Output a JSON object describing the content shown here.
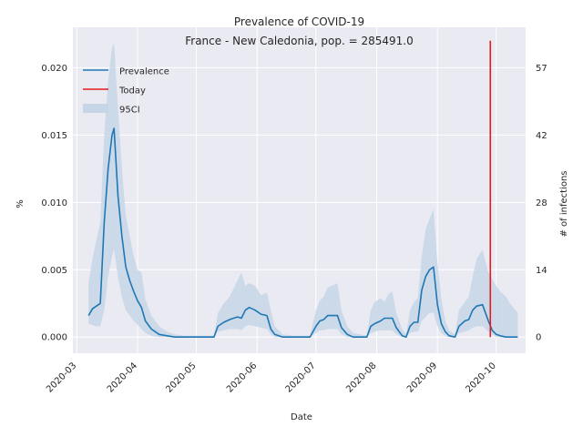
{
  "chart_data": {
    "type": "line",
    "title": "Prevalence of COVID-19",
    "subtitle": "France - New Caledonia, pop. = 285491.0",
    "xlabel": "Date",
    "ylabel": "%",
    "ylabel_right": "# of infections",
    "grid": true,
    "legend_position": "top-left",
    "xlim": [
      "2020-02-28",
      "2020-10-16"
    ],
    "ylim": [
      -0.0012,
      0.023
    ],
    "x_ticks": [
      "2020-03",
      "2020-04",
      "2020-05",
      "2020-06",
      "2020-07",
      "2020-08",
      "2020-09",
      "2020-10"
    ],
    "y_ticks": [
      "0.000",
      "0.005",
      "0.010",
      "0.015",
      "0.020"
    ],
    "y_ticks_right": [
      "0",
      "14",
      "28",
      "42",
      "57"
    ],
    "legend": [
      {
        "label": "Prevalence",
        "color": "#1f77b4"
      },
      {
        "label": "Today",
        "color": "#e41a1c"
      },
      {
        "label": "95CI",
        "color": "#c6d6e6"
      }
    ],
    "today": {
      "date": "2020-09-28",
      "y_top": 0.022
    },
    "series": [
      {
        "name": "Prevalence",
        "color": "#1f77b4",
        "x": [
          "2020-03-07",
          "2020-03-09",
          "2020-03-11",
          "2020-03-13",
          "2020-03-15",
          "2020-03-17",
          "2020-03-19",
          "2020-03-20",
          "2020-03-22",
          "2020-03-24",
          "2020-03-26",
          "2020-03-28",
          "2020-03-30",
          "2020-04-01",
          "2020-04-03",
          "2020-04-05",
          "2020-04-08",
          "2020-04-12",
          "2020-04-16",
          "2020-04-20",
          "2020-04-25",
          "2020-05-10",
          "2020-05-12",
          "2020-05-15",
          "2020-05-18",
          "2020-05-20",
          "2020-05-22",
          "2020-05-24",
          "2020-05-26",
          "2020-05-28",
          "2020-05-31",
          "2020-06-03",
          "2020-06-06",
          "2020-06-08",
          "2020-06-10",
          "2020-06-14",
          "2020-06-20",
          "2020-06-28",
          "2020-07-01",
          "2020-07-03",
          "2020-07-05",
          "2020-07-07",
          "2020-07-09",
          "2020-07-12",
          "2020-07-14",
          "2020-07-17",
          "2020-07-20",
          "2020-07-27",
          "2020-07-29",
          "2020-07-31",
          "2020-08-03",
          "2020-08-05",
          "2020-08-07",
          "2020-08-09",
          "2020-08-11",
          "2020-08-14",
          "2020-08-16",
          "2020-08-18",
          "2020-08-20",
          "2020-08-22",
          "2020-08-24",
          "2020-08-26",
          "2020-08-28",
          "2020-08-30",
          "2020-09-01",
          "2020-09-03",
          "2020-09-05",
          "2020-09-07",
          "2020-09-10",
          "2020-09-12",
          "2020-09-15",
          "2020-09-17",
          "2020-09-19",
          "2020-09-21",
          "2020-09-24",
          "2020-09-27",
          "2020-09-29",
          "2020-10-01",
          "2020-10-03",
          "2020-10-06",
          "2020-10-08",
          "2020-10-12"
        ],
        "values": [
          0.0016,
          0.0021,
          0.0023,
          0.0025,
          0.0085,
          0.0125,
          0.015,
          0.0155,
          0.0105,
          0.0075,
          0.0052,
          0.0042,
          0.0034,
          0.0027,
          0.0022,
          0.0012,
          0.0006,
          0.0002,
          0.0001,
          0.0,
          0.0,
          0.0,
          0.0008,
          0.0011,
          0.0013,
          0.0014,
          0.0015,
          0.0014,
          0.002,
          0.0022,
          0.002,
          0.0017,
          0.0016,
          0.0006,
          0.0002,
          0.0,
          0.0,
          0.0,
          0.0008,
          0.0012,
          0.0013,
          0.0016,
          0.0016,
          0.0016,
          0.0007,
          0.0002,
          0.0,
          0.0,
          0.0008,
          0.001,
          0.0012,
          0.0014,
          0.0014,
          0.0014,
          0.0007,
          0.0001,
          0.0,
          0.0008,
          0.0011,
          0.0011,
          0.0035,
          0.0045,
          0.005,
          0.0052,
          0.0024,
          0.001,
          0.0004,
          0.0001,
          0.0,
          0.0008,
          0.0012,
          0.0013,
          0.002,
          0.0023,
          0.0024,
          0.0012,
          0.0005,
          0.0002,
          0.0001,
          0.0,
          0.0,
          0.0
        ]
      }
    ],
    "ci_band": {
      "name": "95CI",
      "color": "#c6d6e6",
      "x": [
        "2020-03-07",
        "2020-03-09",
        "2020-03-11",
        "2020-03-13",
        "2020-03-15",
        "2020-03-17",
        "2020-03-19",
        "2020-03-20",
        "2020-03-22",
        "2020-03-24",
        "2020-03-26",
        "2020-03-28",
        "2020-03-30",
        "2020-04-01",
        "2020-04-03",
        "2020-04-05",
        "2020-04-08",
        "2020-04-12",
        "2020-04-16",
        "2020-04-20",
        "2020-04-25",
        "2020-05-10",
        "2020-05-12",
        "2020-05-15",
        "2020-05-18",
        "2020-05-20",
        "2020-05-22",
        "2020-05-24",
        "2020-05-26",
        "2020-05-28",
        "2020-05-31",
        "2020-06-03",
        "2020-06-06",
        "2020-06-08",
        "2020-06-10",
        "2020-06-14",
        "2020-06-20",
        "2020-06-28",
        "2020-07-01",
        "2020-07-03",
        "2020-07-05",
        "2020-07-07",
        "2020-07-09",
        "2020-07-12",
        "2020-07-14",
        "2020-07-17",
        "2020-07-20",
        "2020-07-27",
        "2020-07-29",
        "2020-07-31",
        "2020-08-03",
        "2020-08-05",
        "2020-08-07",
        "2020-08-09",
        "2020-08-11",
        "2020-08-14",
        "2020-08-16",
        "2020-08-18",
        "2020-08-20",
        "2020-08-22",
        "2020-08-24",
        "2020-08-26",
        "2020-08-28",
        "2020-08-30",
        "2020-09-01",
        "2020-09-03",
        "2020-09-05",
        "2020-09-07",
        "2020-09-10",
        "2020-09-12",
        "2020-09-15",
        "2020-09-17",
        "2020-09-19",
        "2020-09-21",
        "2020-09-24",
        "2020-09-27",
        "2020-09-29",
        "2020-10-01",
        "2020-10-03",
        "2020-10-06",
        "2020-10-08",
        "2020-10-12"
      ],
      "lower": [
        0.001,
        0.0009,
        0.0008,
        0.0008,
        0.002,
        0.0045,
        0.006,
        0.0065,
        0.0045,
        0.003,
        0.002,
        0.0016,
        0.0012,
        0.0009,
        0.0006,
        0.0003,
        0.0001,
        0.0,
        0.0,
        0.0,
        0.0,
        0.0,
        0.0004,
        0.0005,
        0.0006,
        0.0006,
        0.0006,
        0.0005,
        0.0008,
        0.0009,
        0.0008,
        0.0007,
        0.0006,
        0.0002,
        0.0,
        0.0,
        0.0,
        0.0,
        0.0003,
        0.0005,
        0.0005,
        0.0006,
        0.0006,
        0.0006,
        0.0002,
        0.0,
        0.0,
        0.0,
        0.0003,
        0.0004,
        0.0005,
        0.0005,
        0.0005,
        0.0005,
        0.0002,
        0.0,
        0.0,
        0.0003,
        0.0004,
        0.0004,
        0.0012,
        0.0015,
        0.0018,
        0.0018,
        0.0008,
        0.0003,
        0.0001,
        0.0,
        0.0,
        0.0003,
        0.0004,
        0.0005,
        0.0007,
        0.0008,
        0.0008,
        0.0004,
        0.0002,
        0.0,
        0.0,
        0.0,
        0.0,
        0.0
      ],
      "upper": [
        0.004,
        0.0058,
        0.0072,
        0.0085,
        0.015,
        0.019,
        0.0215,
        0.0218,
        0.017,
        0.0125,
        0.009,
        0.0075,
        0.006,
        0.005,
        0.0048,
        0.0028,
        0.0016,
        0.0008,
        0.0004,
        0.0002,
        0.0001,
        0.0001,
        0.0018,
        0.0025,
        0.003,
        0.0036,
        0.0042,
        0.0048,
        0.0038,
        0.004,
        0.0038,
        0.0031,
        0.0033,
        0.002,
        0.0008,
        0.0002,
        0.0001,
        0.0001,
        0.002,
        0.0027,
        0.003,
        0.0037,
        0.0038,
        0.004,
        0.002,
        0.0008,
        0.0003,
        0.0001,
        0.002,
        0.0026,
        0.0029,
        0.0026,
        0.0032,
        0.0034,
        0.0018,
        0.0006,
        0.0002,
        0.002,
        0.0026,
        0.0029,
        0.006,
        0.008,
        0.0088,
        0.0095,
        0.0055,
        0.0028,
        0.0012,
        0.0005,
        0.0002,
        0.002,
        0.0026,
        0.003,
        0.0045,
        0.0058,
        0.0065,
        0.0048,
        0.0043,
        0.0038,
        0.0034,
        0.003,
        0.0025,
        0.0018
      ]
    }
  }
}
